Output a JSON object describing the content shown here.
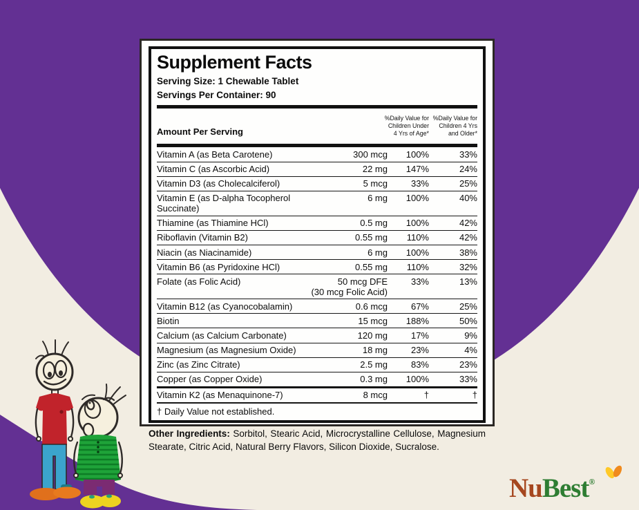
{
  "background": {
    "purple": "#633093",
    "cream": "#F2EDE2"
  },
  "panel": {
    "title": "Supplement Facts",
    "serving_size": "Serving Size: 1 Chewable Tablet",
    "servings_per_container": "Servings Per Container: 90",
    "amount_header": "Amount Per Serving",
    "dv_header_under4": [
      "%Daily Value for",
      "Children Under",
      "4 Yrs of Age*"
    ],
    "dv_header_over4": [
      "%Daily Value for",
      "Children 4 Yrs",
      "and Older*"
    ],
    "rows": [
      {
        "name": "Vitamin A (as Beta Carotene)",
        "amount": "300 mcg",
        "dv_under4": "100%",
        "dv_over4": "33%"
      },
      {
        "name": "Vitamin C (as Ascorbic Acid)",
        "amount": "22 mg",
        "dv_under4": "147%",
        "dv_over4": "24%"
      },
      {
        "name": "Vitamin D3 (as Cholecalciferol)",
        "amount": "5 mcg",
        "dv_under4": "33%",
        "dv_over4": "25%"
      },
      {
        "name": "Vitamin E (as D-alpha Tocopherol Succinate)",
        "amount": "6 mg",
        "dv_under4": "100%",
        "dv_over4": "40%"
      },
      {
        "name": "Thiamine (as Thiamine HCl)",
        "amount": "0.5 mg",
        "dv_under4": "100%",
        "dv_over4": "42%"
      },
      {
        "name": "Riboflavin (Vitamin B2)",
        "amount": "0.55 mg",
        "dv_under4": "110%",
        "dv_over4": "42%"
      },
      {
        "name": "Niacin (as Niacinamide)",
        "amount": "6 mg",
        "dv_under4": "100%",
        "dv_over4": "38%"
      },
      {
        "name": "Vitamin B6 (as Pyridoxine HCl)",
        "amount": "0.55 mg",
        "dv_under4": "110%",
        "dv_over4": "32%"
      },
      {
        "name": "Folate (as Folic Acid)",
        "amount": "50 mcg DFE",
        "amount_note": "(30 mcg Folic Acid)",
        "dv_under4": "33%",
        "dv_over4": "13%"
      },
      {
        "name": "Vitamin B12 (as Cyanocobalamin)",
        "amount": "0.6 mcg",
        "dv_under4": "67%",
        "dv_over4": "25%"
      },
      {
        "name": "Biotin",
        "amount": "15 mcg",
        "dv_under4": "188%",
        "dv_over4": "50%"
      },
      {
        "name": "Calcium (as Calcium Carbonate)",
        "amount": "120 mg",
        "dv_under4": "17%",
        "dv_over4": "9%"
      },
      {
        "name": "Magnesium (as Magnesium Oxide)",
        "amount": "18 mg",
        "dv_under4": "23%",
        "dv_over4": "4%"
      },
      {
        "name": "Zinc (as Zinc Citrate)",
        "amount": "2.5 mg",
        "dv_under4": "83%",
        "dv_over4": "23%"
      },
      {
        "name": "Copper (as Copper Oxide)",
        "amount": "0.3 mg",
        "dv_under4": "100%",
        "dv_over4": "33%",
        "divider_after": "thick"
      },
      {
        "name": "Vitamin K2 (as Menaquinone-7)",
        "amount": "8 mcg",
        "dv_under4": "†",
        "dv_over4": "†"
      }
    ],
    "footnote": "† Daily Value not established.",
    "other_ingredients": {
      "label": "Other Ingredients:",
      "text": " Sorbitol, Stearic Acid, Microcrystalline Cellulose, Magnesium Stearate, Citric Acid, Natural Berry Flavors, Silicon Dioxide, Sucralose."
    }
  },
  "logo": {
    "part1": "Nu",
    "part2": "Best",
    "registered": "®",
    "color_part1": "#A6471F",
    "color_part2": "#2E7D32",
    "sprout_icon": "leaf-sprout-icon"
  },
  "illustration": {
    "name": "two-kids-height-doodle",
    "tall_kid_shirt": "#C1232B",
    "tall_kid_pants": "#3BA4CC",
    "tall_kid_shoes": "#E0701C",
    "short_kid_shirt": "#1FA339",
    "short_kid_pants": "#7B2B72",
    "short_kid_shoes": "#EDD320"
  }
}
